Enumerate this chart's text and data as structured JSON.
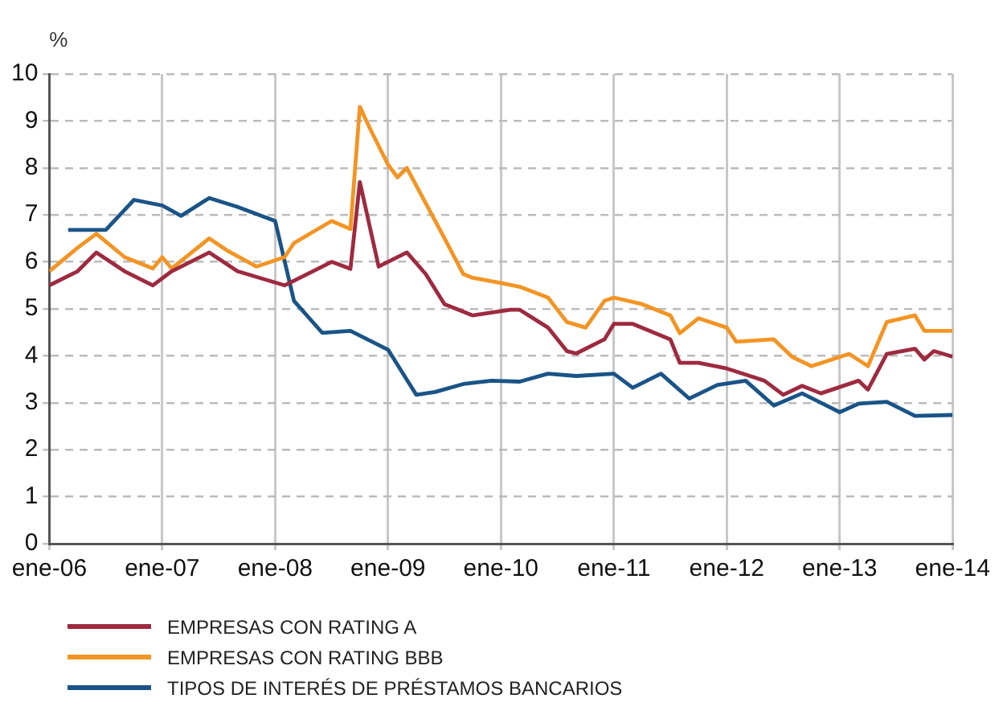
{
  "chart_data": {
    "type": "line",
    "ylabel": "%",
    "xlim": [
      "2006-01",
      "2014-01"
    ],
    "xticks": [
      {
        "value": "2006-01",
        "label": "ene-06"
      },
      {
        "value": "2007-01",
        "label": "ene-07"
      },
      {
        "value": "2008-01",
        "label": "ene-08"
      },
      {
        "value": "2009-01",
        "label": "ene-09"
      },
      {
        "value": "2010-01",
        "label": "ene-10"
      },
      {
        "value": "2011-01",
        "label": "ene-11"
      },
      {
        "value": "2012-01",
        "label": "ene-12"
      },
      {
        "value": "2013-01",
        "label": "ene-13"
      },
      {
        "value": "2014-01",
        "label": "ene-14"
      }
    ],
    "ylim": [
      0,
      10
    ],
    "yticks": [
      0,
      1,
      2,
      3,
      4,
      5,
      6,
      7,
      8,
      9,
      10
    ],
    "grid": true,
    "legend": "bottom",
    "marker": "none",
    "line_style": "solid",
    "series": [
      {
        "name": "EMPRESAS CON RATING A",
        "color": "#9e2a3f",
        "x": [
          "2006-01",
          "2006-04",
          "2006-06",
          "2006-09",
          "2006-12",
          "2007-02",
          "2007-06",
          "2007-09",
          "2008-02",
          "2008-05",
          "2008-07",
          "2008-09",
          "2008-10",
          "2008-12",
          "2009-03",
          "2009-05",
          "2009-07",
          "2009-10",
          "2010-02",
          "2010-03",
          "2010-06",
          "2010-08",
          "2010-09",
          "2010-12",
          "2011-01",
          "2011-03",
          "2011-07",
          "2011-08",
          "2011-10",
          "2012-01",
          "2012-03",
          "2012-05",
          "2012-07",
          "2012-09",
          "2012-11",
          "2013-03",
          "2013-04",
          "2013-06",
          "2013-09",
          "2013-10",
          "2013-11",
          "2014-01"
        ],
        "values": [
          5.5,
          5.8,
          6.2,
          5.8,
          5.5,
          5.8,
          6.2,
          5.8,
          5.5,
          5.8,
          6.0,
          5.85,
          7.7,
          5.9,
          6.2,
          5.74,
          5.1,
          4.86,
          4.98,
          4.98,
          4.6,
          4.1,
          4.05,
          4.35,
          4.68,
          4.68,
          4.35,
          3.85,
          3.85,
          3.73,
          3.6,
          3.47,
          3.17,
          3.36,
          3.2,
          3.47,
          3.28,
          4.04,
          4.15,
          3.92,
          4.1,
          3.98
        ]
      },
      {
        "name": "EMPRESAS CON RATING BBB",
        "color": "#f39423",
        "x": [
          "2006-01",
          "2006-04",
          "2006-06",
          "2006-09",
          "2006-12",
          "2007-01",
          "2007-02",
          "2007-06",
          "2007-08",
          "2007-11",
          "2008-02",
          "2008-03",
          "2008-07",
          "2008-09",
          "2008-10",
          "2008-11",
          "2009-01",
          "2009-02",
          "2009-03",
          "2009-05",
          "2009-07",
          "2009-09",
          "2009-10",
          "2010-01",
          "2010-03",
          "2010-06",
          "2010-08",
          "2010-10",
          "2010-12",
          "2011-01",
          "2011-04",
          "2011-07",
          "2011-08",
          "2011-10",
          "2012-01",
          "2012-02",
          "2012-06",
          "2012-08",
          "2012-10",
          "2013-02",
          "2013-04",
          "2013-06",
          "2013-09",
          "2013-10",
          "2014-01"
        ],
        "values": [
          5.8,
          6.3,
          6.6,
          6.1,
          5.86,
          6.1,
          5.86,
          6.5,
          6.23,
          5.9,
          6.1,
          6.4,
          6.87,
          6.7,
          9.3,
          8.87,
          8.07,
          7.8,
          8.0,
          7.25,
          6.5,
          5.74,
          5.66,
          5.55,
          5.47,
          5.24,
          4.72,
          4.6,
          5.17,
          5.24,
          5.1,
          4.86,
          4.48,
          4.8,
          4.6,
          4.3,
          4.35,
          3.97,
          3.78,
          4.04,
          3.78,
          4.72,
          4.86,
          4.53,
          4.53
        ]
      },
      {
        "name": "TIPOS DE INTERÉS DE PRÉSTAMOS BANCARIOS",
        "color": "#1a5487",
        "x": [
          "2006-03",
          "2006-07",
          "2006-10",
          "2007-01",
          "2007-03",
          "2007-06",
          "2007-09",
          "2008-01",
          "2008-03",
          "2008-06",
          "2008-09",
          "2009-01",
          "2009-04",
          "2009-06",
          "2009-09",
          "2009-12",
          "2010-03",
          "2010-06",
          "2010-09",
          "2011-01",
          "2011-03",
          "2011-06",
          "2011-09",
          "2011-12",
          "2012-03",
          "2012-06",
          "2012-09",
          "2013-01",
          "2013-03",
          "2013-06",
          "2013-09",
          "2014-01"
        ],
        "values": [
          6.68,
          6.68,
          7.32,
          7.2,
          6.98,
          7.36,
          7.17,
          6.87,
          5.17,
          4.49,
          4.53,
          4.13,
          3.17,
          3.23,
          3.4,
          3.47,
          3.45,
          3.62,
          3.57,
          3.62,
          3.32,
          3.62,
          3.09,
          3.38,
          3.47,
          2.94,
          3.2,
          2.8,
          2.98,
          3.02,
          2.72,
          2.74
        ]
      }
    ]
  }
}
